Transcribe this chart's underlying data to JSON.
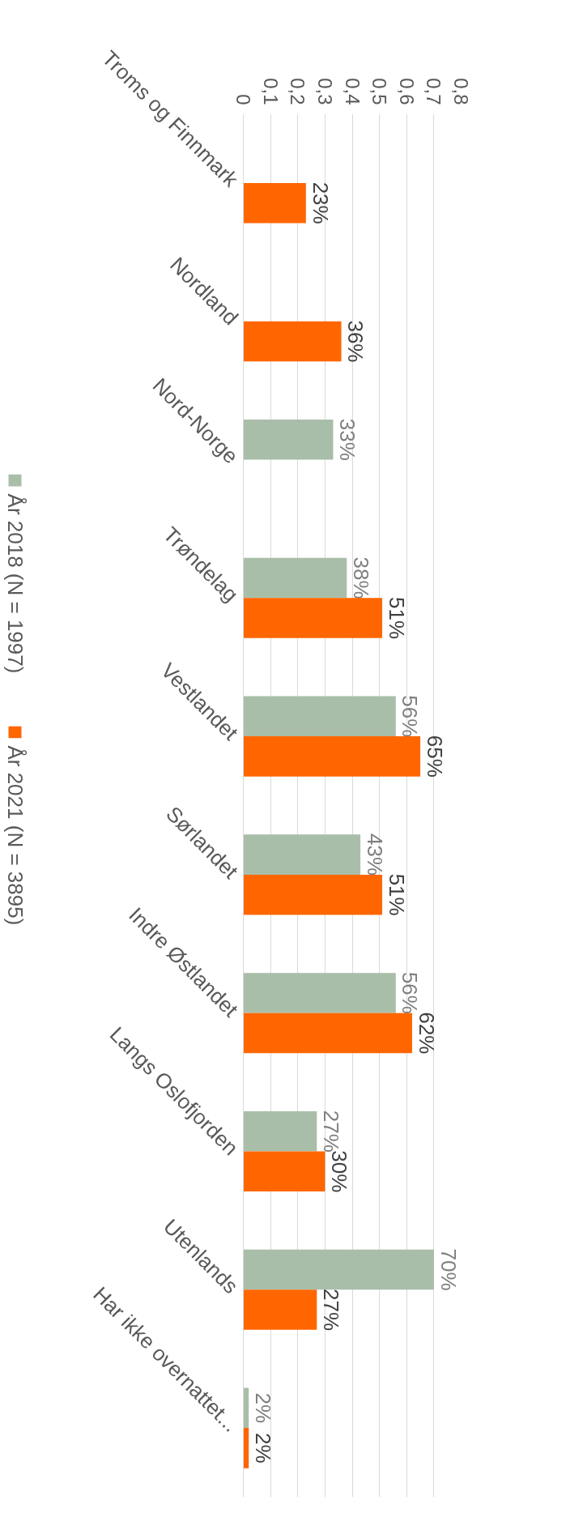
{
  "chart_data": {
    "type": "bar",
    "orientation": "horizontal",
    "categories": [
      "Troms og Finnmark",
      "Nordland",
      "Nord-Norge",
      "Trøndelag",
      "Vestlandet",
      "Sørlandet",
      "Indre Østlandet",
      "Langs Oslofjorden",
      "Utenlands",
      "Har ikke overnattet..."
    ],
    "series": [
      {
        "name": "År 2018 (N = 1997)",
        "color": "#a9bea9",
        "values": [
          null,
          null,
          0.33,
          0.38,
          0.56,
          0.43,
          0.56,
          0.27,
          0.7,
          0.02
        ],
        "value_labels": [
          null,
          null,
          "33%",
          "38%",
          "56%",
          "43%",
          "56%",
          "27%",
          "70%",
          "2%"
        ]
      },
      {
        "name": "År 2021 (N = 3895)",
        "color": "#ff6600",
        "values": [
          0.23,
          0.36,
          null,
          0.51,
          0.65,
          0.51,
          0.62,
          0.3,
          0.27,
          0.02
        ],
        "value_labels": [
          "23%",
          "36%",
          null,
          "51%",
          "65%",
          "51%",
          "62%",
          "30%",
          "27%",
          "2%"
        ]
      }
    ],
    "xlim": [
      0,
      0.8
    ],
    "xticks": [
      0,
      {
        "value": 0.1,
        "label": "0,1"
      },
      {
        "value": 0.2,
        "label": "0,2"
      },
      {
        "value": 0.3,
        "label": "0,3"
      },
      {
        "value": 0.4,
        "label": "0,4"
      },
      {
        "value": 0.5,
        "label": "0,5"
      },
      {
        "value": 0.6,
        "label": "0,6"
      },
      {
        "value": 0.7,
        "label": "0,7"
      },
      {
        "value": 0.8,
        "label": "0,8"
      }
    ],
    "grid": "x",
    "legend": "left"
  }
}
